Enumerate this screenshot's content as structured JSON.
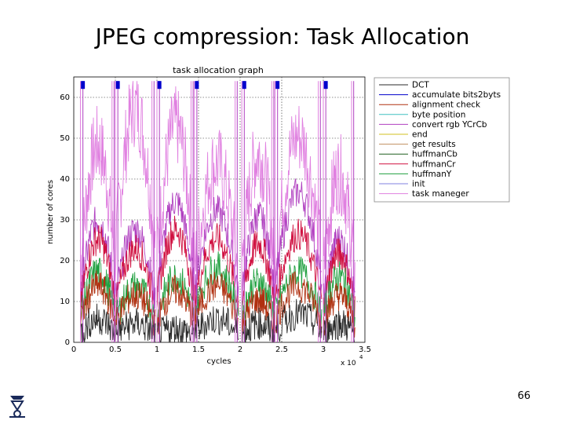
{
  "slide": {
    "title": "JPEG compression: Task Allocation",
    "page_number": "66"
  },
  "chart_data": {
    "type": "line",
    "title": "task allocation graph",
    "xlabel": "cycles",
    "ylabel": "number of cores",
    "x_multiplier_label": "x 10",
    "x_multiplier_exponent": "4",
    "xlim": [
      0,
      3.5
    ],
    "ylim": [
      0,
      65
    ],
    "x_ticks": [
      "0",
      "0.5",
      "1",
      "1.5",
      "2",
      "2.5",
      "3",
      "3.5"
    ],
    "y_ticks": [
      "0",
      "10",
      "20",
      "30",
      "40",
      "50",
      "60"
    ],
    "grid": "dotted",
    "legend_position": "right",
    "series": [
      {
        "name": "DCT",
        "color": "#2a2a2a"
      },
      {
        "name": "accumulate bits2byts",
        "color": "#0000cc"
      },
      {
        "name": "alignment check",
        "color": "#b03010"
      },
      {
        "name": "byte position",
        "color": "#40c0c0"
      },
      {
        "name": "convert rgb YCrCb",
        "color": "#b040c0"
      },
      {
        "name": "end",
        "color": "#d0c020"
      },
      {
        "name": "get results",
        "color": "#c09060"
      },
      {
        "name": "huffmanCb",
        "color": "#206020"
      },
      {
        "name": "huffmanCr",
        "color": "#d01040"
      },
      {
        "name": "huffmanY",
        "color": "#20a040"
      },
      {
        "name": "init",
        "color": "#8080e0"
      },
      {
        "name": "task maneger",
        "color": "#e080e0"
      }
    ],
    "bursts": [
      {
        "start": 0.08,
        "end": 0.5,
        "peak": 64,
        "levels": {
          "DCT": 5,
          "alignment check": 12,
          "huffmanCr": 22,
          "huffmanY": 15,
          "convert rgb YCrCb": 26,
          "task maneger": 42
        }
      },
      {
        "start": 0.5,
        "end": 0.98,
        "peak": 64,
        "levels": {
          "DCT": 4,
          "alignment check": 10,
          "huffmanCr": 20,
          "huffmanY": 12,
          "convert rgb YCrCb": 24,
          "task maneger": 50
        }
      },
      {
        "start": 1.0,
        "end": 1.45,
        "peak": 64,
        "levels": {
          "DCT": 3,
          "alignment check": 11,
          "huffmanCr": 24,
          "huffmanY": 14,
          "convert rgb YCrCb": 30,
          "task maneger": 46
        }
      },
      {
        "start": 1.45,
        "end": 1.98,
        "peak": 64,
        "levels": {
          "DCT": 5,
          "alignment check": 12,
          "huffmanCr": 22,
          "huffmanY": 16,
          "convert rgb YCrCb": 28,
          "task maneger": 38
        }
      },
      {
        "start": 2.02,
        "end": 2.42,
        "peak": 64,
        "levels": {
          "DCT": 4,
          "alignment check": 9,
          "huffmanCr": 21,
          "huffmanY": 13,
          "convert rgb YCrCb": 27,
          "task maneger": 40
        }
      },
      {
        "start": 2.42,
        "end": 2.98,
        "peak": 64,
        "levels": {
          "DCT": 6,
          "alignment check": 12,
          "huffmanCr": 23,
          "huffmanY": 15,
          "convert rgb YCrCb": 32,
          "task maneger": 44
        }
      },
      {
        "start": 3.0,
        "end": 3.38,
        "peak": 64,
        "levels": {
          "DCT": 4,
          "alignment check": 10,
          "huffmanCr": 19,
          "huffmanY": 14,
          "convert rgb YCrCb": 22,
          "task maneger": 36
        }
      }
    ]
  }
}
